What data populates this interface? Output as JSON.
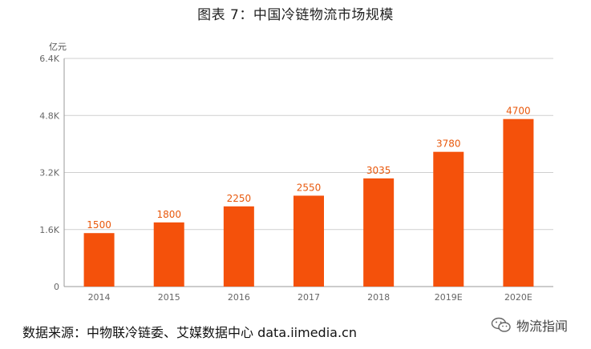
{
  "title": "图表 7：中国冷链物流市场规模",
  "source": "数据来源：中物联冷链委、艾媒数据中心  data.iimedia.cn",
  "watermark": {
    "icon": "wechat-icon",
    "text": "物流指闻"
  },
  "colors": {
    "bar": "#f4510b",
    "value_label": "#e8580c",
    "grid": "#cfcfcf"
  },
  "chart_data": {
    "type": "bar",
    "title": "图表 7：中国冷链物流市场规模",
    "ylabel": "亿元",
    "xlabel": "",
    "categories": [
      "2014",
      "2015",
      "2016",
      "2017",
      "2018",
      "2019E",
      "2020E"
    ],
    "values": [
      1500,
      1800,
      2250,
      2550,
      3035,
      3780,
      4700
    ],
    "value_labels": [
      "1500",
      "1800",
      "2250",
      "2550",
      "3035",
      "3780",
      "4700"
    ],
    "ylim": [
      0,
      6400
    ],
    "yticks": [
      0,
      1600,
      3200,
      4800,
      6400
    ],
    "ytick_labels": [
      "0",
      "1.6K",
      "3.2K",
      "4.8K",
      "6.4K"
    ],
    "grid": true
  }
}
